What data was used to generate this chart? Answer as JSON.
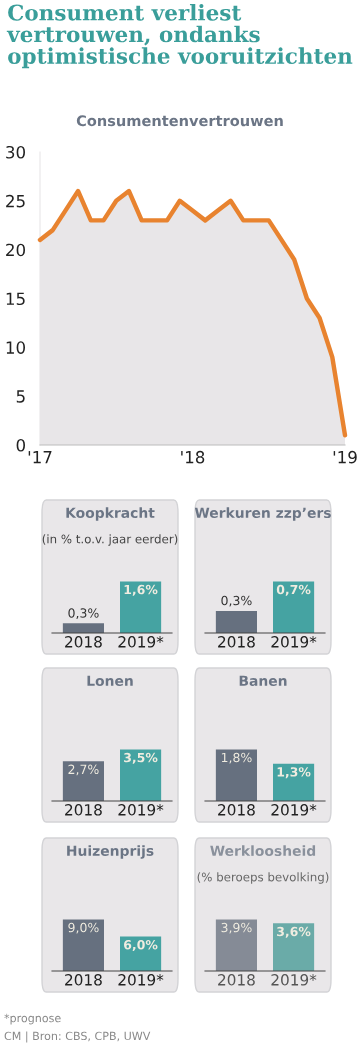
{
  "chart_data": [
    {
      "type": "area",
      "title": "Consument verliest vertrouwen, ondanks optimistische vooruitzichten",
      "subtitle": "Consumentenvertrouwen",
      "x": [
        "2017-01",
        "2017-02",
        "2017-03",
        "2017-04",
        "2017-05",
        "2017-06",
        "2017-07",
        "2017-08",
        "2017-09",
        "2017-10",
        "2017-11",
        "2017-12",
        "2018-01",
        "2018-02",
        "2018-03",
        "2018-04",
        "2018-05",
        "2018-06",
        "2018-07",
        "2018-08",
        "2018-09",
        "2018-10",
        "2018-11",
        "2018-12",
        "2019-01"
      ],
      "series": [
        {
          "color": "#e8832f",
          "values": [
            21,
            22,
            24,
            26,
            23,
            23,
            25,
            26,
            23,
            23,
            23,
            25,
            24,
            23,
            24,
            25,
            23,
            23,
            23,
            21,
            19,
            15,
            13,
            9,
            1
          ]
        }
      ],
      "xlim": [
        "2017-01",
        "2019-01"
      ],
      "xticks": [
        {
          "value": "2017-01",
          "label": "'17"
        },
        {
          "value": "2018-01",
          "label": "'18"
        },
        {
          "value": "2019-01",
          "label": "'19"
        }
      ],
      "ylim": [
        0,
        30
      ],
      "yticks": [
        0,
        5,
        10,
        15,
        20,
        25,
        30
      ],
      "grid": false,
      "marker": "none",
      "line_style": "solid",
      "annotations": [
        "*prognose",
        "CM | Bron: CBS, CPB, UWV"
      ]
    },
    {
      "type": "bar",
      "title": "Koopkracht",
      "subtitle": "(in % t.o.v. jaar eerder)",
      "categories": [
        "2018",
        "2019*"
      ],
      "values": [
        0.3,
        1.6
      ],
      "colors": [
        "#66707f",
        "#45a3a2"
      ],
      "value_labels": [
        "0,3%",
        "1,6%"
      ],
      "tick_labels": "x"
    },
    {
      "type": "bar",
      "title": "Werkuren zzp’ers",
      "categories": [
        "2018",
        "2019*"
      ],
      "values": [
        0.3,
        0.7
      ],
      "colors": [
        "#66707f",
        "#45a3a2"
      ],
      "value_labels": [
        "0,3%",
        "0,7%"
      ],
      "tick_labels": "x"
    },
    {
      "type": "bar",
      "title": "Lonen",
      "categories": [
        "2018",
        "2019*"
      ],
      "values": [
        2.7,
        3.5
      ],
      "colors": [
        "#66707f",
        "#45a3a2"
      ],
      "value_labels": [
        "2,7%",
        "3,5%"
      ],
      "tick_labels": "x"
    },
    {
      "type": "bar",
      "title": "Banen",
      "categories": [
        "2018",
        "2019*"
      ],
      "values": [
        1.8,
        1.3
      ],
      "colors": [
        "#66707f",
        "#45a3a2"
      ],
      "value_labels": [
        "1,8%",
        "1,3%"
      ],
      "tick_labels": "x"
    },
    {
      "type": "bar",
      "title": "Huizenprijs",
      "categories": [
        "2018",
        "2019*"
      ],
      "values": [
        9.0,
        6.0
      ],
      "colors": [
        "#66707f",
        "#45a3a2"
      ],
      "value_labels": [
        "9,0%",
        "6,0%"
      ],
      "tick_labels": "x"
    },
    {
      "type": "bar",
      "title": "Werkloosheid",
      "subtitle": "(% beroeps bevolking)",
      "categories": [
        "2018",
        "2019*"
      ],
      "values": [
        3.9,
        3.6
      ],
      "colors": [
        "#858b96",
        "#6aaba8"
      ],
      "value_labels": [
        "3,9%",
        "3,6%"
      ],
      "tick_labels": "x"
    }
  ]
}
